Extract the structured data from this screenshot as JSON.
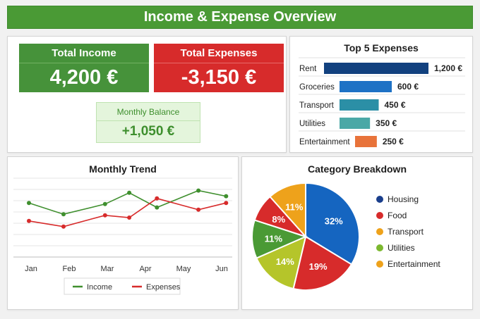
{
  "header": {
    "title": "Income & Expense Overview"
  },
  "summary": {
    "income": {
      "label": "Total Income",
      "value": "4,200 €"
    },
    "expenses": {
      "label": "Total Expenses",
      "value": "-3,150 €"
    },
    "balance": {
      "label": "Monthly Balance",
      "value": "+1,050 €"
    }
  },
  "colors": {
    "income": "#3f8f2e",
    "expense": "#d72b2b",
    "header": "#4a9a35"
  },
  "chart_data": [
    {
      "type": "bar",
      "title": "Top 5 Expenses",
      "orientation": "horizontal",
      "categories": [
        "Rent",
        "Groceries",
        "Transport",
        "Utilities",
        "Entertainment"
      ],
      "values": [
        1200,
        600,
        450,
        350,
        250
      ],
      "value_labels": [
        "1,200 €",
        "600 €",
        "450 €",
        "350 €",
        "250 €"
      ],
      "colors": [
        "#12417f",
        "#1e72c5",
        "#2b8fa6",
        "#4aa8a6",
        "#e8733a"
      ]
    },
    {
      "type": "line",
      "title": "Monthly Trend",
      "categories": [
        "Jan",
        "Feb",
        "Mar",
        "Apr",
        "May",
        "Jun"
      ],
      "ylim": [
        0,
        7
      ],
      "grid": true,
      "legend": "bottom",
      "series": [
        {
          "name": "Income",
          "color": "#3f8f2e",
          "x": [
            0,
            0.5,
            1.1,
            1.45,
            1.85,
            2.45,
            2.85
          ],
          "values": [
            4.8,
            3.8,
            4.7,
            5.7,
            4.4,
            5.9,
            5.4
          ]
        },
        {
          "name": "Expenses",
          "color": "#d72b2b",
          "x": [
            0,
            0.5,
            1.1,
            1.45,
            1.85,
            2.45,
            2.85
          ],
          "values": [
            3.2,
            2.7,
            3.7,
            3.5,
            5.2,
            4.2,
            4.8
          ]
        }
      ]
    },
    {
      "type": "pie",
      "title": "Category Breakdown",
      "legend": "right",
      "slices": [
        {
          "label": "Housing",
          "value": 32,
          "text": "32%",
          "color": "#1565c0"
        },
        {
          "label": "Food",
          "value": 19,
          "text": "19%",
          "color": "#d72b2b"
        },
        {
          "label": "Transport",
          "value": 14,
          "text": "14%",
          "color": "#b5c52a"
        },
        {
          "label": "Utilities",
          "value": 11,
          "text": "11%",
          "color": "#4a9a35"
        },
        {
          "label": "Entertainment",
          "value": 8,
          "text": "8%",
          "color": "#d72b2b"
        },
        {
          "label": "",
          "value": 11,
          "text": "11%",
          "color": "#eea21b"
        }
      ],
      "legend_items": [
        {
          "label": "Housing",
          "color": "#1a3f8c"
        },
        {
          "label": "Food",
          "color": "#d72b2b"
        },
        {
          "label": "Transport",
          "color": "#eea21b"
        },
        {
          "label": "Utilities",
          "color": "#7cb82f"
        },
        {
          "label": "Entertainment",
          "color": "#eea21b"
        }
      ]
    }
  ]
}
